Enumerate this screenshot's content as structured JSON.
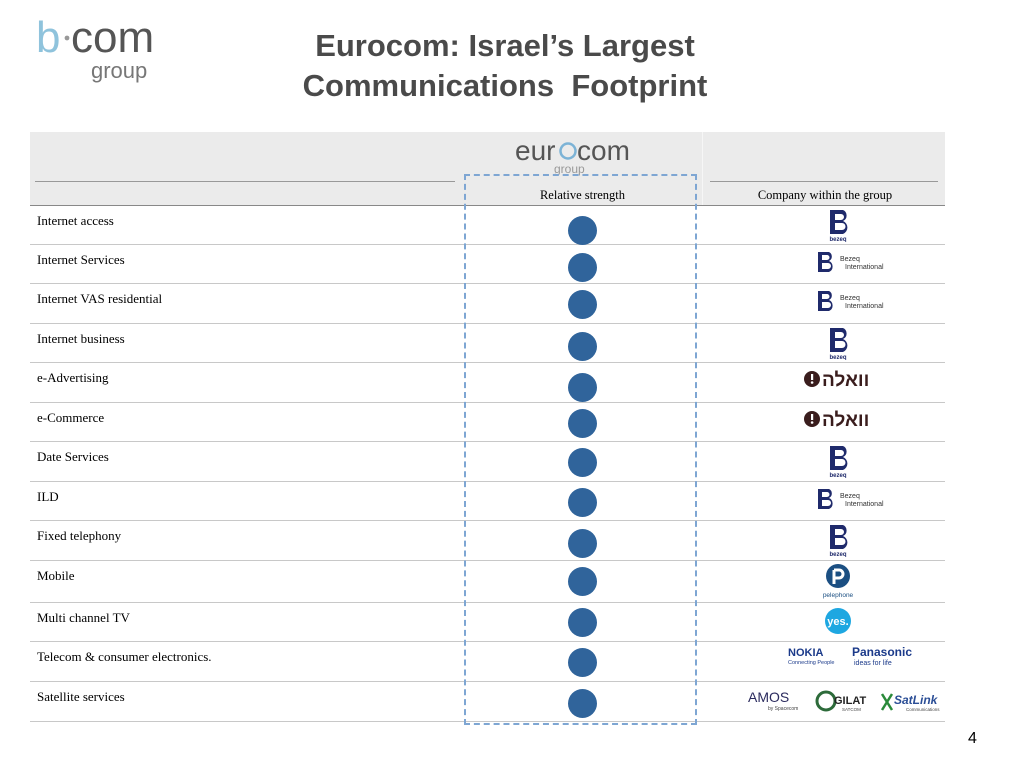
{
  "logo": {
    "brand": "b·com",
    "sub": "group"
  },
  "title": {
    "line1": "Eurocom: Israel’s Largest",
    "line2": "Communications  Footprint"
  },
  "header": {
    "logo_text": "eurocom",
    "logo_sub": "group",
    "relative_strength": "Relative strength",
    "company_within_group": "Company within the group"
  },
  "colors": {
    "dot": "#30649b",
    "dashed_box": "#7ea6d3",
    "bezeq_blue": "#1f2a6b",
    "walla_dark": "#3a1d1d",
    "yes_blue": "#1ea7e1"
  },
  "rows": [
    {
      "label": "Internet access",
      "company": [
        "bezeq"
      ]
    },
    {
      "label": "Internet Services",
      "company": [
        "bezeq-international"
      ]
    },
    {
      "label": "Internet VAS residential",
      "company": [
        "bezeq-international"
      ]
    },
    {
      "label": "Internet business",
      "company": [
        "bezeq"
      ]
    },
    {
      "label": "e-Advertising",
      "company": [
        "walla"
      ]
    },
    {
      "label": "e-Commerce",
      "company": [
        "walla"
      ]
    },
    {
      "label": "Date Services",
      "company": [
        "bezeq"
      ]
    },
    {
      "label": "ILD",
      "company": [
        "bezeq-international"
      ]
    },
    {
      "label": "Fixed telephony",
      "company": [
        "bezeq"
      ]
    },
    {
      "label": "Mobile",
      "company": [
        "pelephone"
      ]
    },
    {
      "label": "Multi channel TV",
      "company": [
        "yes"
      ]
    },
    {
      "label": "Telecom & consumer electronics.",
      "company": [
        "nokia",
        "panasonic"
      ]
    },
    {
      "label": "Satellite services",
      "company": [
        "amos",
        "gilat",
        "satlink"
      ]
    }
  ],
  "logos": {
    "bezeq": "bezeq",
    "bezeq_international_1": "Bezeq",
    "bezeq_international_2": "International",
    "walla": "וואלה",
    "pelephone": "pelephone",
    "yes": "yes.",
    "nokia": "NOKIA",
    "nokia_tag": "Connecting People",
    "panasonic": "Panasonic",
    "panasonic_tag": "ideas for life",
    "amos": "AMOS",
    "amos_tag": "by Spacecom",
    "gilat": "GILAT",
    "gilat_tag": "SATCOM",
    "satlink": "SatLink",
    "satlink_tag": "Communications"
  },
  "page_number": "4"
}
